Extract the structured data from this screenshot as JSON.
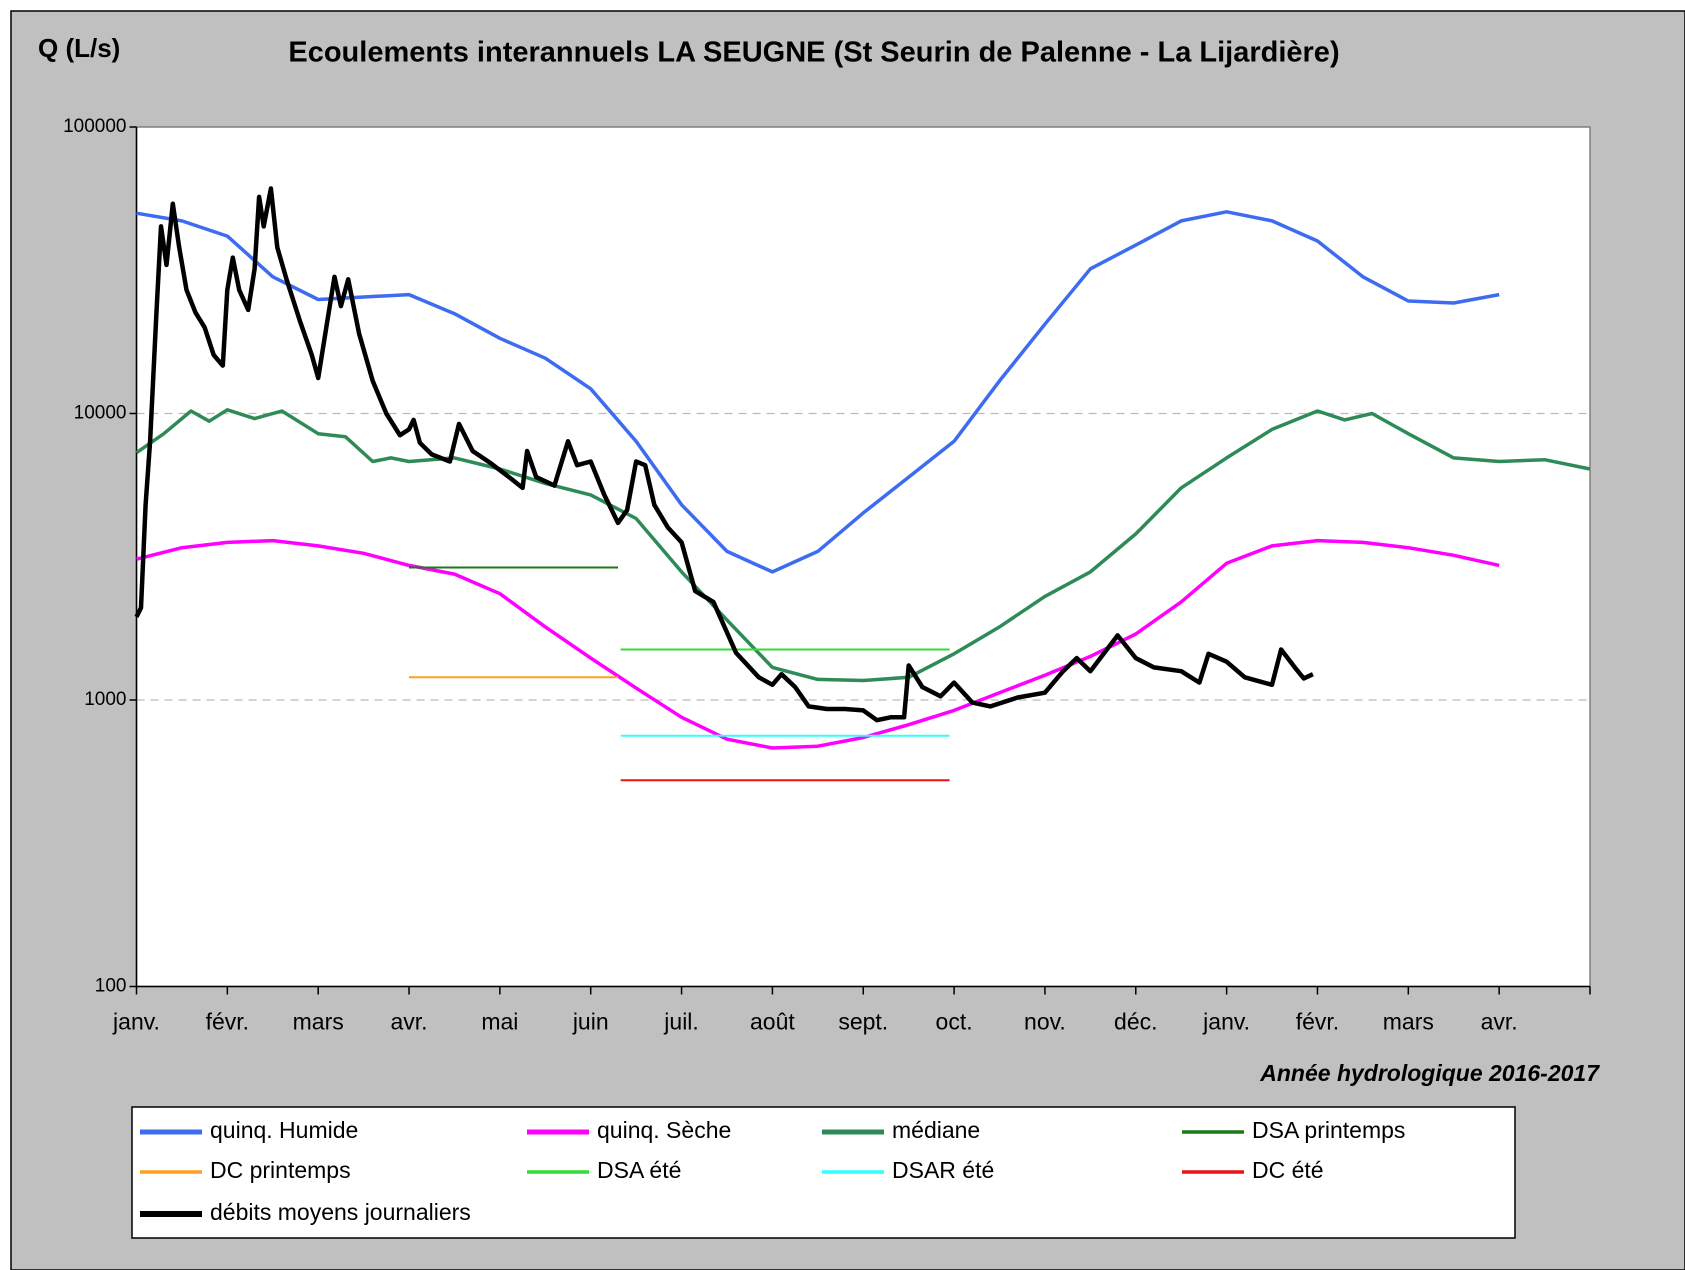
{
  "chart_data": {
    "type": "line",
    "title": "Ecoulements interannuels LA SEUGNE (St Seurin de Palenne - La Lijardière)",
    "y_label": "Q (L/s)",
    "x_label": "Année hydrologique 2016-2017",
    "y_scale": "log",
    "ylim": [
      100,
      100000
    ],
    "yticks": [
      100,
      1000,
      10000,
      100000
    ],
    "xlim": [
      0,
      16
    ],
    "xticks": [
      {
        "value": 0,
        "label": "janv."
      },
      {
        "value": 1,
        "label": "févr."
      },
      {
        "value": 2,
        "label": "mars"
      },
      {
        "value": 3,
        "label": "avr."
      },
      {
        "value": 4,
        "label": "mai"
      },
      {
        "value": 5,
        "label": "juin"
      },
      {
        "value": 6,
        "label": "juil."
      },
      {
        "value": 7,
        "label": "août"
      },
      {
        "value": 8,
        "label": "sept."
      },
      {
        "value": 9,
        "label": "oct."
      },
      {
        "value": 10,
        "label": "nov."
      },
      {
        "value": 11,
        "label": "déc."
      },
      {
        "value": 12,
        "label": "janv."
      },
      {
        "value": 13,
        "label": "févr."
      },
      {
        "value": 14,
        "label": "mars"
      },
      {
        "value": 15,
        "label": "avr."
      }
    ],
    "grid": true,
    "legend": "bottom",
    "series": [
      {
        "name": "quinq. Humide",
        "color": "#3d6cf0",
        "width": 3.5,
        "x": [
          0,
          0.5,
          1,
          1.5,
          2,
          2.5,
          3,
          3.5,
          4,
          4.5,
          5,
          5.5,
          6,
          6.5,
          7,
          7.5,
          8,
          8.5,
          9,
          9.5,
          10,
          10.5,
          11,
          11.5,
          12,
          12.5,
          13,
          13.5,
          14,
          14.5,
          15
        ],
        "values": [
          50000,
          47000,
          41600,
          30000,
          25000,
          25500,
          26000,
          22300,
          18300,
          15600,
          12200,
          8000,
          4800,
          3300,
          2800,
          3300,
          4500,
          6000,
          8000,
          13000,
          20500,
          32000,
          38700,
          47000,
          50600,
          47000,
          40000,
          30000,
          24700,
          24300,
          26000
        ]
      },
      {
        "name": "quinq. Sèche",
        "color": "#ff00ff",
        "width": 3.5,
        "x": [
          0,
          0.5,
          1,
          1.5,
          2,
          2.5,
          3,
          3.5,
          4,
          4.5,
          5,
          5.5,
          6,
          6.5,
          7,
          7.5,
          8,
          8.5,
          9,
          9.5,
          10,
          10.5,
          11,
          11.5,
          12,
          12.5,
          13,
          13.5,
          14,
          14.5,
          15
        ],
        "values": [
          3100,
          3400,
          3550,
          3600,
          3450,
          3250,
          2950,
          2750,
          2350,
          1800,
          1400,
          1100,
          870,
          730,
          680,
          690,
          740,
          820,
          920,
          1060,
          1220,
          1420,
          1700,
          2200,
          3000,
          3450,
          3600,
          3550,
          3400,
          3200,
          2950
        ]
      },
      {
        "name": "médiane",
        "color": "#2e8b57",
        "width": 3.5,
        "x": [
          0,
          0.3,
          0.6,
          0.8,
          1,
          1.3,
          1.6,
          2,
          2.3,
          2.6,
          2.8,
          3,
          3.5,
          4,
          4.5,
          5,
          5.5,
          6,
          6.5,
          7,
          7.5,
          8,
          8.5,
          9,
          9.5,
          10,
          10.5,
          11,
          11.5,
          12,
          12.5,
          13,
          13.3,
          13.6,
          14,
          14.5,
          15,
          15.5,
          16
        ],
        "values": [
          7300,
          8500,
          10200,
          9400,
          10300,
          9600,
          10200,
          8500,
          8300,
          6800,
          7000,
          6800,
          7000,
          6400,
          5700,
          5200,
          4300,
          2800,
          1900,
          1300,
          1180,
          1170,
          1200,
          1450,
          1800,
          2300,
          2800,
          3800,
          5500,
          7000,
          8800,
          10200,
          9500,
          10000,
          8500,
          7000,
          6800,
          6900,
          6400
        ]
      },
      {
        "name": "DSA printemps",
        "color": "#1a7a1a",
        "width": 2,
        "x": [
          3,
          5.3
        ],
        "values": [
          2900,
          2900
        ]
      },
      {
        "name": "DC printemps",
        "color": "#ffa020",
        "width": 2,
        "x": [
          3,
          5.3
        ],
        "values": [
          1200,
          1200
        ]
      },
      {
        "name": "DSA été",
        "color": "#33dd33",
        "width": 2,
        "x": [
          5.33,
          8.95
        ],
        "values": [
          1500,
          1500
        ]
      },
      {
        "name": "DSAR été",
        "color": "#33ffff",
        "width": 2,
        "x": [
          5.33,
          8.95
        ],
        "values": [
          750,
          750
        ]
      },
      {
        "name": "DC été",
        "color": "#ee1111",
        "width": 2,
        "x": [
          5.33,
          8.95
        ],
        "values": [
          525,
          525
        ]
      },
      {
        "name": "débits moyens journaliers",
        "color": "#000000",
        "width": 4.5,
        "x": [
          0,
          0.05,
          0.1,
          0.15,
          0.22,
          0.27,
          0.33,
          0.4,
          0.47,
          0.55,
          0.65,
          0.75,
          0.85,
          0.95,
          1,
          1.06,
          1.13,
          1.23,
          1.3,
          1.35,
          1.4,
          1.48,
          1.55,
          1.65,
          1.8,
          1.93,
          2,
          2.1,
          2.18,
          2.25,
          2.33,
          2.45,
          2.6,
          2.75,
          2.9,
          3,
          3.05,
          3.12,
          3.25,
          3.45,
          3.55,
          3.7,
          3.9,
          4.1,
          4.25,
          4.3,
          4.4,
          4.6,
          4.75,
          4.85,
          5,
          5.15,
          5.3,
          5.4,
          5.5,
          5.6,
          5.7,
          5.85,
          6,
          6.15,
          6.35,
          6.6,
          6.85,
          7,
          7.1,
          7.25,
          7.4,
          7.6,
          7.8,
          8,
          8.15,
          8.3,
          8.45,
          8.5,
          8.65,
          8.85,
          9,
          9.2,
          9.4,
          9.7,
          10,
          10.2,
          10.35,
          10.5,
          10.8,
          11,
          11.2,
          11.5,
          11.7,
          11.8,
          12,
          12.2,
          12.5,
          12.6,
          12.75,
          12.85,
          12.95
        ],
        "values": [
          1950,
          2100,
          4800,
          8000,
          22700,
          45000,
          33000,
          54000,
          38000,
          27000,
          22500,
          20000,
          16000,
          14700,
          27000,
          35000,
          27000,
          23000,
          32000,
          57000,
          45000,
          61000,
          38000,
          29500,
          21000,
          16000,
          13300,
          21000,
          30000,
          23700,
          29400,
          19000,
          13000,
          10000,
          8400,
          8800,
          9500,
          7900,
          7200,
          6800,
          9200,
          7400,
          6700,
          6000,
          5500,
          7400,
          6000,
          5600,
          8000,
          6600,
          6800,
          5200,
          4150,
          4600,
          6800,
          6600,
          4800,
          4000,
          3550,
          2400,
          2200,
          1460,
          1200,
          1130,
          1230,
          1110,
          950,
          930,
          930,
          920,
          850,
          870,
          870,
          1320,
          1110,
          1030,
          1150,
          980,
          950,
          1020,
          1060,
          1260,
          1400,
          1260,
          1680,
          1400,
          1300,
          1260,
          1150,
          1450,
          1360,
          1200,
          1130,
          1500,
          1300,
          1190,
          1230
        ]
      }
    ]
  }
}
